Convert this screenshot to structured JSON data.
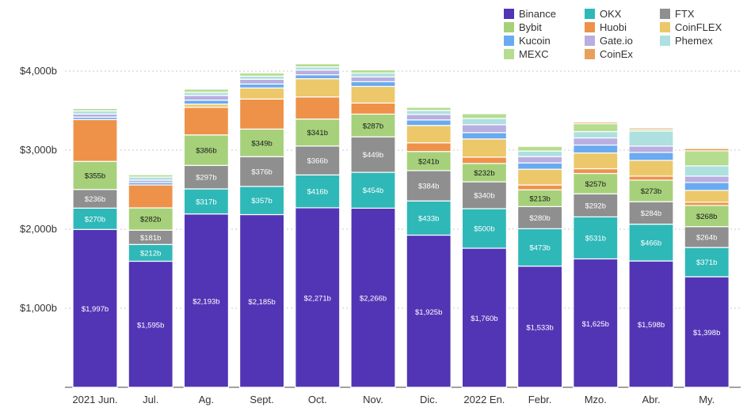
{
  "chart_data": {
    "type": "bar",
    "stacked": true,
    "title": "",
    "xlabel": "",
    "ylabel": "",
    "ylim": [
      0,
      4000
    ],
    "y_ticks": [
      1000,
      2000,
      3000,
      4000
    ],
    "y_tick_labels": [
      "$1,000b",
      "$2,000b",
      "$3,000b",
      "$4,000b"
    ],
    "grid": "horizontal dashed",
    "legend_position": "top-right",
    "categories": [
      "2021 Jun.",
      "Jul.",
      "Ag.",
      "Sept.",
      "Oct.",
      "Nov.",
      "Dic.",
      "2022 En.",
      "Febr.",
      "Mzo.",
      "Abr.",
      "My."
    ],
    "series": [
      {
        "name": "Binance",
        "color": "#5235b5",
        "values": [
          1997,
          1595,
          2193,
          2185,
          2271,
          2266,
          1925,
          1760,
          1533,
          1625,
          1598,
          1398
        ],
        "labels": [
          "$1,997b",
          "$1,595b",
          "$2,193b",
          "$2,185b",
          "$2,271b",
          "$2,266b",
          "$1,925b",
          "$1,760b",
          "$1,533b",
          "$1,625b",
          "$1,598b",
          "$1,398b"
        ]
      },
      {
        "name": "OKX",
        "color": "#2fb8b8",
        "values": [
          270,
          212,
          317,
          357,
          416,
          454,
          433,
          500,
          473,
          531,
          466,
          371
        ],
        "labels": [
          "$270b",
          "$212b",
          "$317b",
          "$357b",
          "$416b",
          "$454b",
          "$433b",
          "$500b",
          "$473b",
          "$531b",
          "$466b",
          "$371b"
        ]
      },
      {
        "name": "FTX",
        "color": "#8f8f8f",
        "values": [
          236,
          181,
          297,
          376,
          366,
          449,
          384,
          340,
          280,
          292,
          284,
          264
        ],
        "labels": [
          "$236b",
          "$181b",
          "$297b",
          "$376b",
          "$366b",
          "$449b",
          "$384b",
          "$340b",
          "$280b",
          "$292b",
          "$284b",
          "$264b"
        ]
      },
      {
        "name": "Bybit",
        "color": "#a6d17a",
        "values": [
          355,
          282,
          386,
          349,
          341,
          287,
          241,
          232,
          213,
          257,
          273,
          268
        ],
        "labels": [
          "$355b",
          "$282b",
          "$386b",
          "$349b",
          "$341b",
          "$287b",
          "$241b",
          "$232b",
          "$213b",
          "$257b",
          "$273b",
          "$268b"
        ]
      },
      {
        "name": "Huobi",
        "color": "#ee924a",
        "values": [
          530,
          290,
          350,
          380,
          280,
          140,
          110,
          80,
          60,
          60,
          50,
          40
        ],
        "labels": []
      },
      {
        "name": "CoinFLEX",
        "color": "#ecc86a",
        "values": [
          0,
          0,
          40,
          140,
          230,
          210,
          220,
          230,
          200,
          200,
          200,
          150
        ],
        "labels": []
      },
      {
        "name": "Kucoin",
        "color": "#6aaaf0",
        "values": [
          30,
          30,
          50,
          50,
          50,
          60,
          70,
          80,
          80,
          100,
          100,
          100
        ],
        "labels": []
      },
      {
        "name": "Gate.io",
        "color": "#b8aee0",
        "values": [
          40,
          30,
          60,
          60,
          60,
          60,
          70,
          100,
          80,
          90,
          80,
          80
        ],
        "labels": []
      },
      {
        "name": "Phemex",
        "color": "#aee0e0",
        "values": [
          40,
          40,
          40,
          40,
          40,
          50,
          50,
          80,
          70,
          80,
          190,
          130
        ],
        "labels": []
      },
      {
        "name": "MEXC",
        "color": "#b6dc90",
        "values": [
          30,
          30,
          40,
          40,
          40,
          40,
          40,
          60,
          60,
          100,
          20,
          190
        ],
        "labels": []
      },
      {
        "name": "CoinEx",
        "color": "#e8a05a",
        "values": [
          10,
          10,
          10,
          10,
          10,
          10,
          10,
          10,
          10,
          20,
          20,
          30
        ],
        "labels": []
      }
    ]
  },
  "legend": {
    "items": [
      {
        "name": "Binance",
        "color": "#5235b5"
      },
      {
        "name": "OKX",
        "color": "#2fb8b8"
      },
      {
        "name": "FTX",
        "color": "#8f8f8f"
      },
      {
        "name": "Bybit",
        "color": "#a6d17a"
      },
      {
        "name": "Huobi",
        "color": "#ee924a"
      },
      {
        "name": "CoinFLEX",
        "color": "#ecc86a"
      },
      {
        "name": "Kucoin",
        "color": "#6aaaf0"
      },
      {
        "name": "Gate.io",
        "color": "#b8aee0"
      },
      {
        "name": "Phemex",
        "color": "#aee0e0"
      },
      {
        "name": "MEXC",
        "color": "#b6dc90"
      },
      {
        "name": "CoinEx",
        "color": "#e8a05a"
      }
    ]
  }
}
